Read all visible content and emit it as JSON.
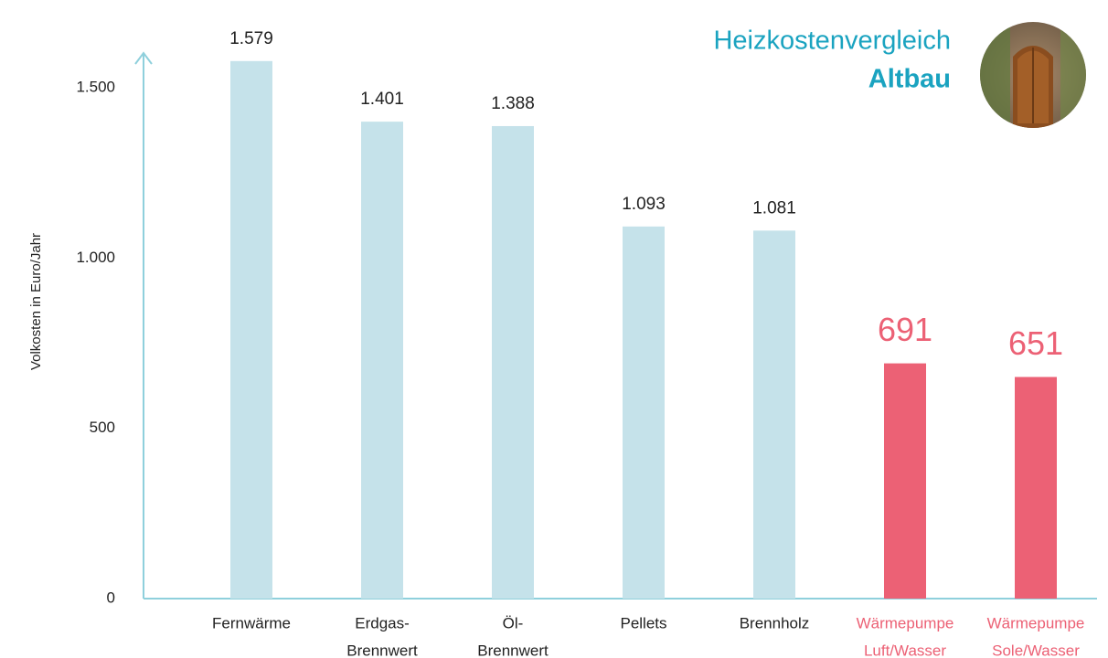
{
  "chart_data": {
    "type": "bar",
    "title": "Heizkostenvergleich",
    "subtitle": "Altbau",
    "y_label": "Volkosten in Euro/Jahr",
    "categories": [
      [
        "Fernwärme"
      ],
      [
        "Erdgas-",
        "Brennwert"
      ],
      [
        "Öl-",
        "Brennwert"
      ],
      [
        "Pellets"
      ],
      [
        "Brennholz"
      ],
      [
        "Wärmepumpe",
        "Luft/Wasser"
      ],
      [
        "Wärmepumpe",
        "Sole/Wasser"
      ]
    ],
    "values": [
      1579,
      1401,
      1388,
      1093,
      1081,
      691,
      651
    ],
    "value_labels": [
      "1.579",
      "1.401",
      "1.388",
      "1.093",
      "1.081",
      "691",
      "651"
    ],
    "colors": [
      "#c5e2ea",
      "#c5e2ea",
      "#c5e2ea",
      "#c5e2ea",
      "#c5e2ea",
      "#ec6175",
      "#ec6175"
    ],
    "label_colors": [
      "#222222",
      "#222222",
      "#222222",
      "#222222",
      "#222222",
      "#ec6175",
      "#ec6175"
    ],
    "ylim": [
      0,
      1600
    ],
    "yticks": [
      0,
      500,
      {
        "value": 1000,
        "label": "1.000"
      },
      {
        "value": 1500,
        "label": "1.500"
      }
    ],
    "grid": false
  }
}
